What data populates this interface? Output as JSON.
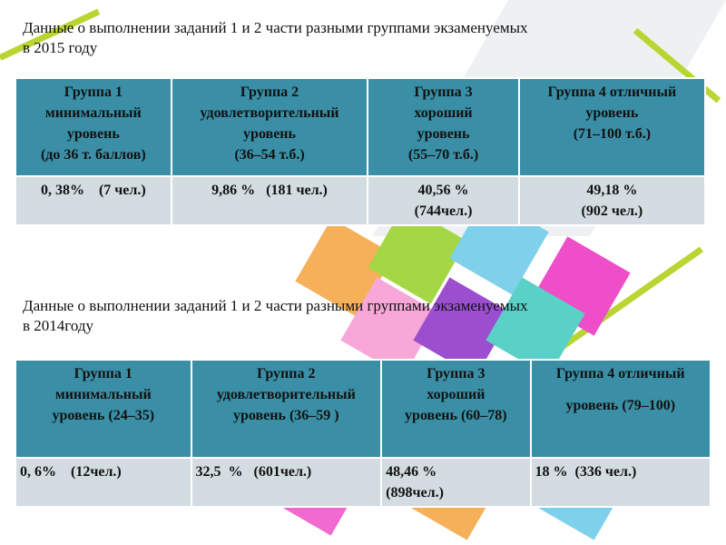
{
  "tables": [
    {
      "title": "Данные о выполнении заданий 1 и 2 части разными группами экзаменуемых  в 2015 году",
      "headers": [
        [
          "Группа 1",
          "минимальный",
          "уровень",
          "(до 36 т. баллов)"
        ],
        [
          "Группа 2",
          "удовлетворительный",
          "уровень",
          "(36–54 т.б.)"
        ],
        [
          "Группа 3",
          "хороший",
          "уровень",
          "(55–70 т.б.)"
        ],
        [
          "Группа 4 отличный",
          "уровень",
          "(71–100 т.б.)"
        ]
      ],
      "values": [
        [
          "0, 38%    (7 чел.)"
        ],
        [
          "9,86 %   (181 чел.)"
        ],
        [
          "40,56 %",
          "(744чел.)"
        ],
        [
          "49,18 %",
          "(902 чел.)"
        ]
      ]
    },
    {
      "title": "Данные о выполнении заданий 1 и 2 части разными группами экзаменуемых  в 2014году",
      "headers": [
        [
          "Группа 1",
          "минимальный",
          "уровень (24–35)"
        ],
        [
          "Группа 2",
          "удовлетворительный",
          "уровень (36–59 )"
        ],
        [
          "Группа 3",
          "хороший",
          "уровень (60–78)"
        ],
        [
          "Группа 4 отличный",
          "",
          "уровень (79–100)"
        ]
      ],
      "values": [
        [
          "0, 6%    (12чел.)"
        ],
        [
          "32,5  %   (601чел.)"
        ],
        [
          "48,46 %",
          "(898чел.)"
        ],
        [
          "18 %  (336 чел.)"
        ]
      ]
    }
  ]
}
